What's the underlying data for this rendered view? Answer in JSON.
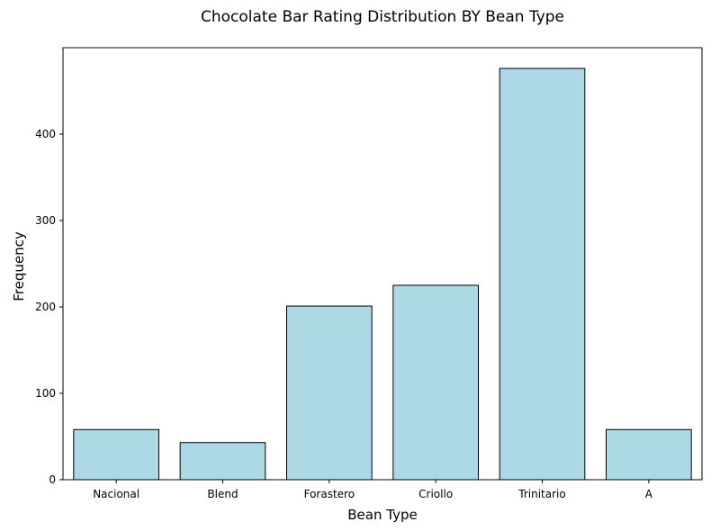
{
  "chart_data": {
    "type": "bar",
    "title": "Chocolate Bar Rating Distribution BY Bean Type",
    "xlabel": "Bean Type",
    "ylabel": "Frequency",
    "categories": [
      "Nacional",
      "Blend",
      "Forastero",
      "Criollo",
      "Trinitario",
      "A"
    ],
    "values": [
      58,
      43,
      201,
      225,
      476,
      58
    ],
    "ylim": [
      0,
      500
    ],
    "yticks": [
      0,
      100,
      200,
      300,
      400
    ],
    "grid": false,
    "bar_color": "#add8e6",
    "edge_color": "#000000"
  }
}
